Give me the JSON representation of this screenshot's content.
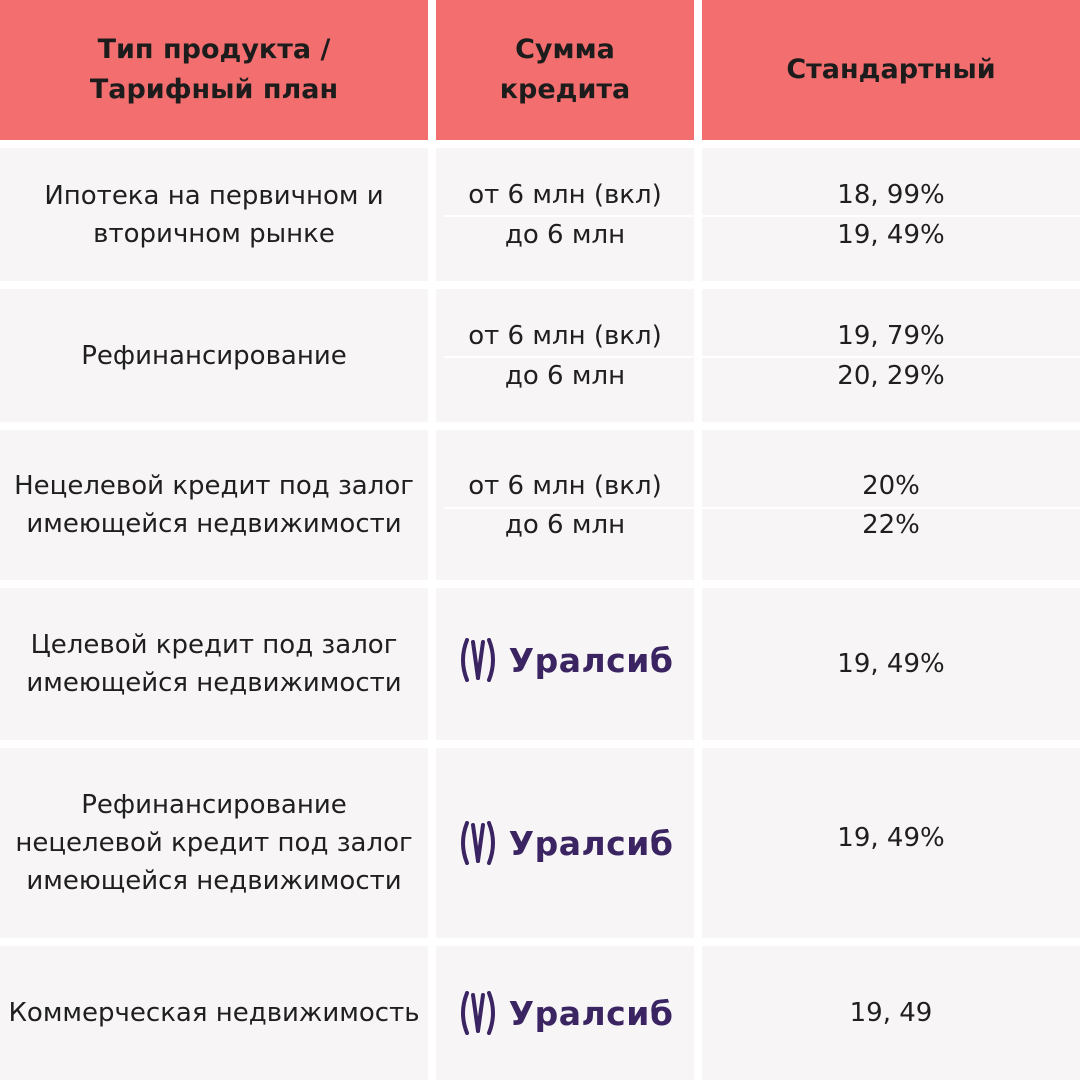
{
  "header": {
    "col1": "Тип продукта /\nТарифный план",
    "col2": "Сумма\nкредита",
    "col3": "Стандартный"
  },
  "rows": [
    {
      "product": "Ипотека на первичном и вторичном рынке",
      "amounts": [
        "от 6 млн (вкл)",
        "до 6 млн"
      ],
      "rates": [
        "18, 99%",
        "19, 49%"
      ]
    },
    {
      "product": "Рефинансирование",
      "amounts": [
        "от 6 млн (вкл)",
        "до 6 млн"
      ],
      "rates": [
        "19, 79%",
        "20, 29%"
      ]
    },
    {
      "product": "Нецелевой кредит под залог имеющейся недвижимости",
      "amounts": [
        "от 6 млн (вкл)",
        "до 6 млн"
      ],
      "rates": [
        "20%",
        "22%"
      ]
    },
    {
      "product": "Целевой кредит под залог имеющейся недвижимости",
      "logo_text": "Уралсиб",
      "rate": "19, 49%"
    },
    {
      "product": "Рефинансирование нецелевой кредит под залог имеющейся недвижимости",
      "logo_text": "Уралсиб",
      "rate": "19, 49%"
    },
    {
      "product": "Коммерческая недвижимость",
      "logo_text": "Уралсиб",
      "rate": "19, 49"
    }
  ],
  "colors": {
    "header_bg": "#f36e6f",
    "row_bg": "#f7f5f6",
    "logo": "#3a2461"
  },
  "icons": {
    "bank_logo": "uralsib-logo-icon"
  }
}
